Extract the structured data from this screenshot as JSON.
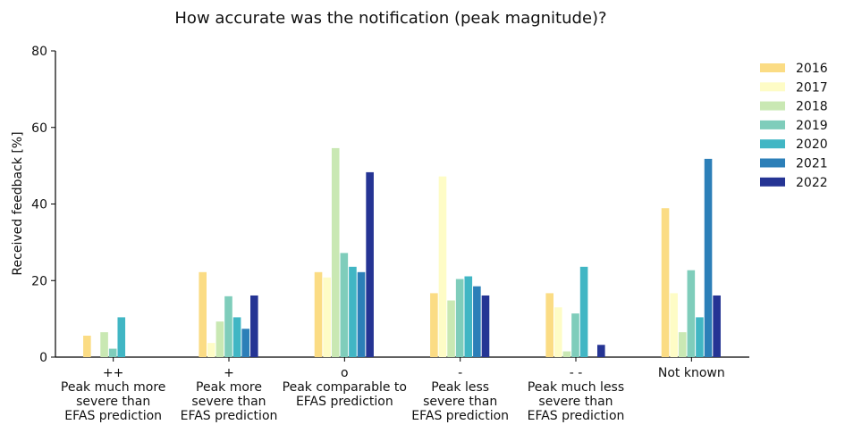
{
  "chart_data": {
    "type": "bar",
    "title": "How accurate was the notification (peak magnitude)?",
    "y_label": "Received feedback [%]",
    "categories": [
      "++\nPeak much more\nsevere than\nEFAS prediction",
      "+\nPeak more\nsevere than\nEFAS prediction",
      "o\nPeak comparable to\nEFAS prediction",
      "-\nPeak less\nsevere than\nEFAS prediction",
      "- -\nPeak much less\nsevere than\nEFAS prediction",
      "Not known"
    ],
    "series": [
      {
        "name": "2016",
        "color": "#fbdc84",
        "values": [
          5.6,
          22.2,
          22.2,
          16.7,
          16.7,
          38.9
        ]
      },
      {
        "name": "2017",
        "color": "#fefcc6",
        "values": [
          0,
          3.7,
          20.8,
          47.2,
          13.0,
          16.7
        ]
      },
      {
        "name": "2018",
        "color": "#c9e8b3",
        "values": [
          6.5,
          9.3,
          54.6,
          14.8,
          1.5,
          6.5
        ]
      },
      {
        "name": "2019",
        "color": "#7fcdbb",
        "values": [
          2.2,
          15.9,
          27.2,
          20.4,
          11.4,
          22.7
        ]
      },
      {
        "name": "2020",
        "color": "#41b6c4",
        "values": [
          10.4,
          10.4,
          23.6,
          21.1,
          23.6,
          10.4
        ]
      },
      {
        "name": "2021",
        "color": "#2c7fb8",
        "values": [
          0,
          7.4,
          22.2,
          18.5,
          0,
          51.8
        ]
      },
      {
        "name": "2022",
        "color": "#253494",
        "values": [
          0,
          16.1,
          48.3,
          16.1,
          3.2,
          16.1
        ]
      }
    ],
    "ylim": [
      0,
      80
    ],
    "yticks": [
      0,
      20,
      40,
      60,
      80
    ],
    "grid": false,
    "legend": "right"
  }
}
